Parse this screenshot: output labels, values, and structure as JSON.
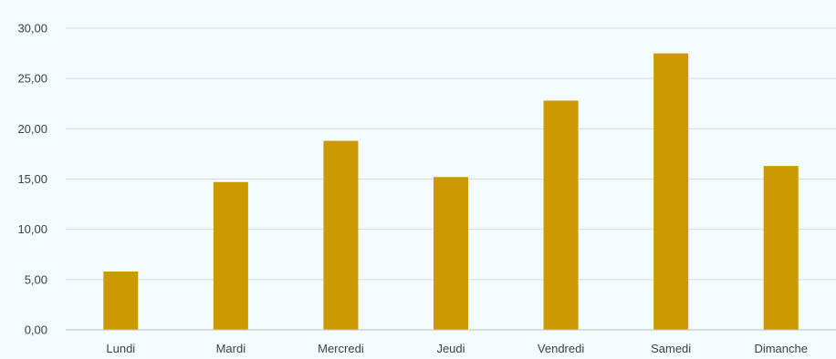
{
  "chart_data": {
    "type": "bar",
    "categories": [
      "Lundi",
      "Mardi",
      "Mercredi",
      "Jeudi",
      "Vendredi",
      "Samedi",
      "Dimanche"
    ],
    "values": [
      5.8,
      14.7,
      18.8,
      15.2,
      22.8,
      27.5,
      16.3
    ],
    "title": "",
    "xlabel": "",
    "ylabel": "",
    "ylim": [
      0,
      30
    ],
    "yticks": [
      "0,00",
      "5,00",
      "10,00",
      "15,00",
      "20,00",
      "25,00",
      "30,00"
    ],
    "grid": true,
    "legend": "none",
    "colors": {
      "bar": "#cc9900",
      "grid": "#d9d9d9",
      "axis": "#bfbfbf",
      "background": "#f3fbfd"
    }
  }
}
